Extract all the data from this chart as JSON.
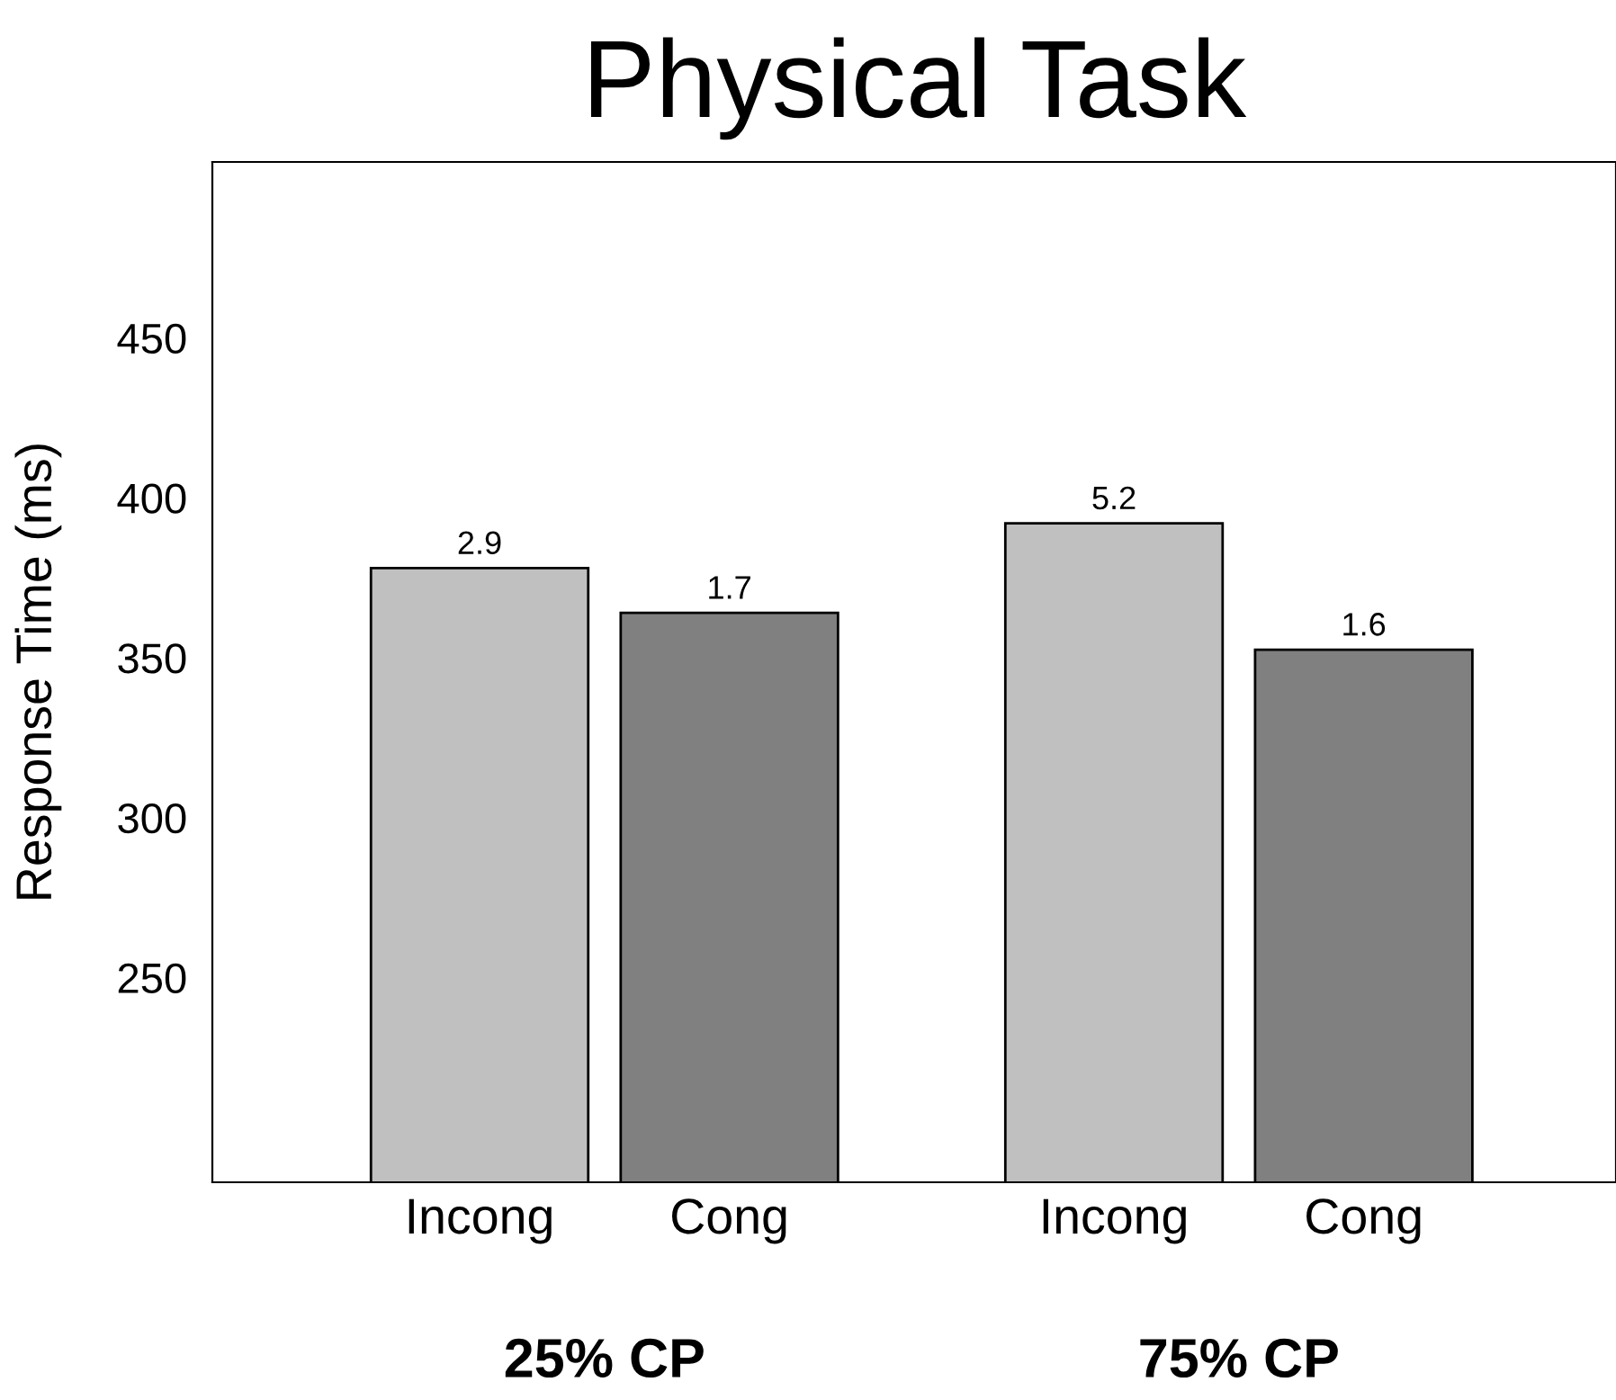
{
  "chart_data": {
    "type": "bar",
    "title": "Physical Task",
    "ylabel": "Response Time (ms)",
    "categories": [
      "Incong",
      "Cong",
      "Incong",
      "Cong"
    ],
    "values": [
      378,
      364,
      392,
      352.5
    ],
    "colors": [
      "#c0c0c0",
      "#808080",
      "#c0c0c0",
      "#808080"
    ],
    "annotations": [
      "2.9",
      "1.7",
      "5.2",
      "1.6",
      "25% CP",
      "75% CP"
    ],
    "ylim": [
      186,
      505
    ],
    "yticks": [
      250,
      300,
      350,
      400,
      450
    ],
    "grid": false,
    "legend": false
  }
}
